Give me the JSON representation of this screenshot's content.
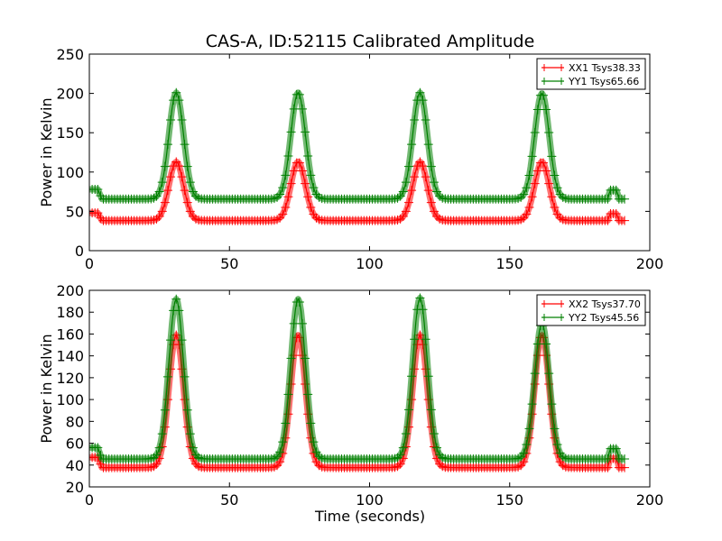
{
  "chart_data": [
    {
      "type": "line",
      "title": "CAS-A, ID:52115 Calibrated Amplitude",
      "xlabel": "",
      "ylabel": "Power in Kelvin",
      "xlim": [
        0,
        200
      ],
      "ylim": [
        0,
        250
      ],
      "xticks": [
        0,
        50,
        100,
        150,
        200
      ],
      "yticks": [
        0,
        50,
        100,
        150,
        200,
        250
      ],
      "grid": false,
      "legend_position": "top-right",
      "series": [
        {
          "name": "XX1 Tsys38.33",
          "color": "#ff0000",
          "marker": "+",
          "x_range": [
            0,
            191
          ],
          "start_level": 48,
          "baseline": 38.33,
          "peaks": [
            {
              "x": 31,
              "y": 113
            },
            {
              "x": 74.5,
              "y": 113
            },
            {
              "x": 118,
              "y": 113
            },
            {
              "x": 161.5,
              "y": 113
            }
          ],
          "bump": {
            "x": 187,
            "y": 47
          }
        },
        {
          "name": "YY1 Tsys65.66",
          "color": "#008000",
          "marker": "+",
          "x_range": [
            0,
            191
          ],
          "start_level": 78,
          "baseline": 65.66,
          "peaks": [
            {
              "x": 31,
              "y": 201
            },
            {
              "x": 74.5,
              "y": 201
            },
            {
              "x": 118,
              "y": 201
            },
            {
              "x": 161.5,
              "y": 200
            }
          ],
          "bump": {
            "x": 187,
            "y": 77
          }
        }
      ]
    },
    {
      "type": "line",
      "title": "",
      "xlabel": "Time (seconds)",
      "ylabel": "Power in Kelvin",
      "xlim": [
        0,
        200
      ],
      "ylim": [
        20,
        200
      ],
      "xticks": [
        0,
        50,
        100,
        150,
        200
      ],
      "yticks": [
        20,
        40,
        60,
        80,
        100,
        120,
        140,
        160,
        180,
        200
      ],
      "grid": false,
      "legend_position": "top-right",
      "series": [
        {
          "name": "XX2 Tsys37.70",
          "color": "#ff0000",
          "marker": "+",
          "x_range": [
            0,
            191
          ],
          "start_level": 47,
          "baseline": 37.7,
          "peaks": [
            {
              "x": 31,
              "y": 159
            },
            {
              "x": 74.5,
              "y": 159
            },
            {
              "x": 118,
              "y": 159
            },
            {
              "x": 161.5,
              "y": 159
            }
          ],
          "bump": {
            "x": 187,
            "y": 46
          }
        },
        {
          "name": "YY2 Tsys45.56",
          "color": "#008000",
          "marker": "+",
          "x_range": [
            0,
            191
          ],
          "start_level": 56,
          "baseline": 45.56,
          "peaks": [
            {
              "x": 31,
              "y": 192
            },
            {
              "x": 74.5,
              "y": 192
            },
            {
              "x": 118,
              "y": 193
            },
            {
              "x": 161.5,
              "y": 170
            }
          ],
          "bump": {
            "x": 187,
            "y": 55
          }
        }
      ]
    }
  ]
}
